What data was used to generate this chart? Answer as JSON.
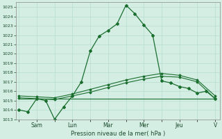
{
  "title": "Pression niveau de la mer( hPa )",
  "bg_color": "#d4eee4",
  "grid_color": "#b8ddd0",
  "line_color": "#1a6e2e",
  "ylim": [
    1013,
    1025.5
  ],
  "yticks": [
    1013,
    1014,
    1015,
    1016,
    1017,
    1018,
    1019,
    1020,
    1021,
    1022,
    1023,
    1024,
    1025
  ],
  "day_labels": [
    "",
    "Sam",
    "",
    "Lun",
    "",
    "Mar",
    "",
    "Mer",
    "",
    "Jeu",
    "",
    "V"
  ],
  "day_positions": [
    0,
    2,
    4,
    6,
    8,
    10,
    12,
    14,
    16,
    18,
    20,
    22
  ],
  "xlim": [
    -0.3,
    22.5
  ],
  "line1": {
    "x": [
      0,
      1,
      2,
      3,
      4,
      5,
      6,
      7,
      8,
      9,
      10,
      11,
      12,
      13,
      14,
      15,
      16,
      17,
      18,
      19,
      20,
      21,
      22
    ],
    "y": [
      1014.0,
      1013.8,
      1015.2,
      1015.0,
      1013.0,
      1014.3,
      1015.5,
      1017.0,
      1020.3,
      1021.9,
      1022.5,
      1023.2,
      1025.2,
      1024.3,
      1023.1,
      1022.0,
      1017.1,
      1016.9,
      1016.5,
      1016.3,
      1015.8,
      1016.0,
      1015.2
    ]
  },
  "line2": {
    "x": [
      0,
      2,
      4,
      6,
      8,
      10,
      12,
      14,
      16,
      18,
      20,
      22
    ],
    "y": [
      1015.3,
      1015.2,
      1015.1,
      1015.5,
      1015.9,
      1016.4,
      1016.9,
      1017.3,
      1017.6,
      1017.5,
      1017.0,
      1015.2
    ]
  },
  "line3": {
    "x": [
      0,
      2,
      4,
      6,
      8,
      10,
      12,
      14,
      16,
      18,
      20,
      22
    ],
    "y": [
      1015.5,
      1015.4,
      1015.3,
      1015.7,
      1016.2,
      1016.7,
      1017.2,
      1017.6,
      1017.9,
      1017.7,
      1017.2,
      1015.5
    ]
  },
  "line4": {
    "x": [
      0,
      22
    ],
    "y": [
      1015.2,
      1015.2
    ]
  }
}
